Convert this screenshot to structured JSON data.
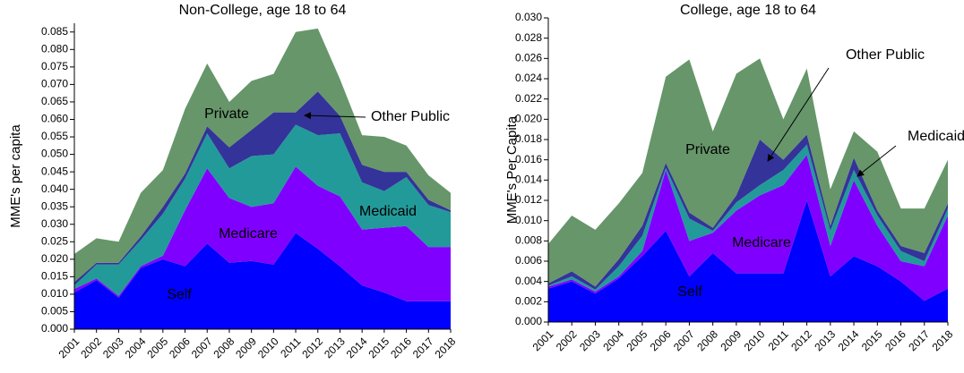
{
  "chart_data": [
    {
      "type": "stacked_area",
      "title": "Non-College, age 18 to 64",
      "y_label": "MME's per capita",
      "categories": [
        "2001",
        "2002",
        "2003",
        "2004",
        "2005",
        "2006",
        "2007",
        "2008",
        "2009",
        "2010",
        "2011",
        "2012",
        "2013",
        "2014",
        "2015",
        "2016",
        "2017",
        "2018"
      ],
      "ylim": [
        0,
        0.0875
      ],
      "yticks": [
        {
          "value": 0,
          "label": "0.000"
        },
        {
          "value": 0.005,
          "label": "0.005"
        },
        {
          "value": 0.01,
          "label": "0.010"
        },
        {
          "value": 0.015,
          "label": "0.015"
        },
        {
          "value": 0.02,
          "label": "0.020"
        },
        {
          "value": 0.025,
          "label": "0.025"
        },
        {
          "value": 0.03,
          "label": "0.030"
        },
        {
          "value": 0.035,
          "label": "0.035"
        },
        {
          "value": 0.04,
          "label": "0.040"
        },
        {
          "value": 0.045,
          "label": "0.045"
        },
        {
          "value": 0.05,
          "label": "0.050"
        },
        {
          "value": 0.055,
          "label": "0.055"
        },
        {
          "value": 0.06,
          "label": "0.060"
        },
        {
          "value": 0.065,
          "label": "0.065"
        },
        {
          "value": 0.07,
          "label": "0.070"
        },
        {
          "value": 0.075,
          "label": "0.075"
        },
        {
          "value": 0.08,
          "label": "0.080"
        },
        {
          "value": 0.085,
          "label": "0.085"
        }
      ],
      "series": [
        {
          "name": "Self",
          "color": "#0000ff",
          "values": [
            0.0105,
            0.014,
            0.009,
            0.0175,
            0.02,
            0.018,
            0.0245,
            0.019,
            0.0195,
            0.0185,
            0.0275,
            0.023,
            0.018,
            0.0125,
            0.0105,
            0.008,
            0.008,
            0.008
          ]
        },
        {
          "name": "Medicare",
          "color": "#8000ff",
          "values": [
            0.001,
            0.0005,
            0.0005,
            0.0005,
            0.001,
            0.016,
            0.0215,
            0.0185,
            0.0155,
            0.0175,
            0.019,
            0.018,
            0.02,
            0.016,
            0.0185,
            0.0215,
            0.0155,
            0.0155
          ]
        },
        {
          "name": "Medicaid",
          "color": "#229a9a",
          "values": [
            0.001,
            0.004,
            0.009,
            0.0075,
            0.012,
            0.009,
            0.01,
            0.0085,
            0.0145,
            0.014,
            0.012,
            0.0145,
            0.018,
            0.0135,
            0.0105,
            0.014,
            0.012,
            0.01
          ]
        },
        {
          "name": "Other Public",
          "color": "#333399",
          "values": [
            0.001,
            0.0005,
            0.0005,
            0.001,
            0.002,
            0.0015,
            0.002,
            0.006,
            0.0075,
            0.012,
            0.0035,
            0.0125,
            0.005,
            0.005,
            0.0055,
            0.0015,
            0.0015,
            0.0005
          ]
        },
        {
          "name": "Private",
          "color": "#66966a",
          "values": [
            0.008,
            0.007,
            0.006,
            0.0125,
            0.0105,
            0.0185,
            0.018,
            0.013,
            0.014,
            0.011,
            0.023,
            0.018,
            0.0105,
            0.0085,
            0.01,
            0.0075,
            0.007,
            0.005
          ]
        }
      ]
    },
    {
      "type": "stacked_area",
      "title": "College, age 18 to 64",
      "y_label": "MME's Per Capita",
      "categories": [
        "2001",
        "2002",
        "2003",
        "2004",
        "2005",
        "2006",
        "2007",
        "2008",
        "2009",
        "2010",
        "2011",
        "2012",
        "2013",
        "2014",
        "2015",
        "2016",
        "2017",
        "2018"
      ],
      "ylim": [
        0,
        0.03
      ],
      "yticks": [
        {
          "value": 0,
          "label": "0.000"
        },
        {
          "value": 0.002,
          "label": "0.002"
        },
        {
          "value": 0.004,
          "label": "0.004"
        },
        {
          "value": 0.006,
          "label": "0.006"
        },
        {
          "value": 0.008,
          "label": "0.008"
        },
        {
          "value": 0.01,
          "label": "0.010"
        },
        {
          "value": 0.012,
          "label": "0.012"
        },
        {
          "value": 0.014,
          "label": "0.014"
        },
        {
          "value": 0.016,
          "label": "0.016"
        },
        {
          "value": 0.018,
          "label": "0.018"
        },
        {
          "value": 0.02,
          "label": "0.020"
        },
        {
          "value": 0.022,
          "label": "0.022"
        },
        {
          "value": 0.024,
          "label": "0.024"
        },
        {
          "value": 0.026,
          "label": "0.026"
        },
        {
          "value": 0.028,
          "label": "0.028"
        },
        {
          "value": 0.03,
          "label": "0.030"
        }
      ],
      "series": [
        {
          "name": "Self",
          "color": "#0000ff",
          "values": [
            0.0033,
            0.004,
            0.0028,
            0.0043,
            0.0065,
            0.009,
            0.0045,
            0.0068,
            0.0048,
            0.0048,
            0.0048,
            0.012,
            0.0045,
            0.0065,
            0.0055,
            0.004,
            0.0021,
            0.0033
          ]
        },
        {
          "name": "Medicare",
          "color": "#8000ff",
          "values": [
            0.0002,
            0.0002,
            0.0002,
            0.0002,
            0.0005,
            0.006,
            0.0035,
            0.002,
            0.0062,
            0.0077,
            0.0087,
            0.0045,
            0.003,
            0.0075,
            0.004,
            0.002,
            0.0034,
            0.0072
          ]
        },
        {
          "name": "Medicaid",
          "color": "#229a9a",
          "values": [
            0.0001,
            0.0003,
            0.0002,
            0.001,
            0.0015,
            0.0002,
            0.0022,
            0.0002,
            0.0008,
            0.001,
            0.0015,
            0.001,
            0.0015,
            0.001,
            0.001,
            0.001,
            0.0005,
            0.0007
          ]
        },
        {
          "name": "Other Public",
          "color": "#333399",
          "values": [
            0.0002,
            0.0005,
            0.0003,
            0.0007,
            0.001,
            0.0005,
            0.0006,
            0.0003,
            0.0007,
            0.0045,
            0.001,
            0.001,
            0.0005,
            0.0012,
            0.0005,
            0.0005,
            0.0008,
            0.0005
          ]
        },
        {
          "name": "Private",
          "color": "#66966a",
          "values": [
            0.0039,
            0.0055,
            0.0056,
            0.0055,
            0.0052,
            0.0085,
            0.0151,
            0.0095,
            0.012,
            0.008,
            0.004,
            0.0065,
            0.0036,
            0.0026,
            0.0058,
            0.0037,
            0.0044,
            0.0043
          ]
        }
      ]
    }
  ]
}
